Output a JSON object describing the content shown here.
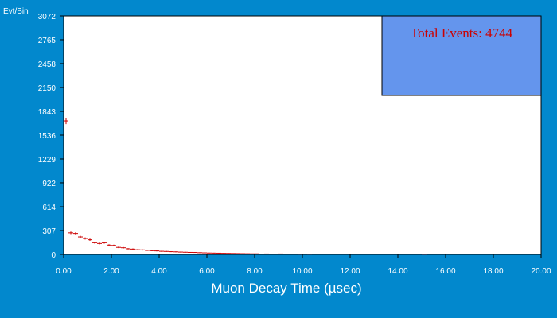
{
  "colors": {
    "background": "#0288cd",
    "plot_background": "#ffffff",
    "data_marker": "#cc0000",
    "info_box": "#6495ed",
    "info_text": "#cc0000",
    "axis_text": "#ffffff"
  },
  "info_box": {
    "text": "Total Events: 4744"
  },
  "chart_data": {
    "type": "scatter",
    "title": "",
    "xlabel": "Muon Decay Time (µsec)",
    "ylabel": "Evt/Bin",
    "xlim": [
      0,
      20
    ],
    "ylim": [
      0,
      3072
    ],
    "x_ticks": [
      "0.00",
      "2.00",
      "4.00",
      "6.00",
      "8.00",
      "10.00",
      "12.00",
      "14.00",
      "16.00",
      "18.00",
      "20.00"
    ],
    "y_ticks": [
      "0",
      "307",
      "614",
      "922",
      "1229",
      "1536",
      "1843",
      "2150",
      "2458",
      "2765",
      "3072"
    ],
    "bin_width": 0.2,
    "marker": "horizontal-dash with error bar",
    "grid": false,
    "series": [
      {
        "x": [
          0.1,
          0.3,
          0.5,
          0.7,
          0.9,
          1.1,
          1.3,
          1.5,
          1.7,
          1.9,
          2.1,
          2.3,
          2.5,
          2.7,
          2.9,
          3.1,
          3.3,
          3.5,
          3.7,
          3.9,
          4.1,
          4.3,
          4.5,
          4.7,
          4.9,
          5.1,
          5.3,
          5.5,
          5.7,
          5.9,
          6.1,
          6.3,
          6.5,
          6.7,
          6.9,
          7.1,
          7.3,
          7.5,
          7.7,
          7.9,
          8.1,
          8.5,
          9.1,
          9.5,
          9.9,
          10.3,
          15.1
        ],
        "y": [
          1720,
          278,
          270,
          225,
          205,
          188,
          150,
          140,
          150,
          120,
          115,
          90,
          85,
          72,
          68,
          60,
          58,
          52,
          48,
          45,
          40,
          38,
          35,
          33,
          30,
          28,
          26,
          25,
          22,
          20,
          18,
          17,
          16,
          14,
          13,
          12,
          11,
          10,
          9,
          8,
          8,
          6,
          6,
          5,
          4,
          4,
          3
        ]
      }
    ]
  }
}
